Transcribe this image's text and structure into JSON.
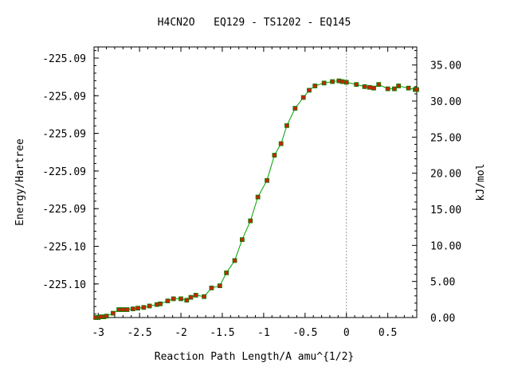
{
  "chart_data": {
    "type": "line",
    "title": "H4CN2O   EQ129 - TS1202 - EQ145",
    "xlabel": "Reaction Path Length/A amu^{1/2}",
    "ylabel": "Energy/Hartree",
    "y2label": "kJ/mol",
    "xlim": [
      -3.05,
      0.85
    ],
    "ylim": [
      0,
      37.5
    ],
    "x_ticks": [
      "-3",
      "-2.5",
      "-2",
      "-1.5",
      "-1",
      "-0.5",
      "0",
      "0.5"
    ],
    "y_ticks_left": [
      "-225.09",
      "-225.09",
      "-225.09",
      "-225.09",
      "-225.09",
      "-225.10",
      "-225.10"
    ],
    "y_ticks_right": [
      "35.00",
      "30.00",
      "25.00",
      "20.00",
      "15.00",
      "10.00",
      "5.00",
      "0.00"
    ],
    "reference_line": {
      "x": 0,
      "style": "dotted"
    },
    "colors": {
      "line": "#00a000",
      "marker": "#cc2200",
      "marker_edge": "#008000",
      "ref_line": "#999999"
    },
    "series": [
      {
        "x": [
          -3.03,
          -3.0,
          -2.97,
          -2.93,
          -2.9,
          -2.82,
          -2.75,
          -2.7,
          -2.65,
          -2.58,
          -2.52,
          -2.45,
          -2.38,
          -2.29,
          -2.25,
          -2.16,
          -2.09,
          -2.0,
          -1.93,
          -1.88,
          -1.82,
          -1.72,
          -1.63,
          -1.53,
          -1.45,
          -1.35,
          -1.26,
          -1.16,
          -1.07,
          -0.96,
          -0.87,
          -0.79,
          -0.72,
          -0.62,
          -0.52,
          -0.45,
          -0.38,
          -0.27,
          -0.17,
          -0.09,
          -0.05,
          0.0,
          0.12,
          0.22,
          0.28,
          0.33,
          0.39,
          0.5,
          0.58,
          0.63,
          0.75,
          0.83,
          0.86
        ],
        "y": [
          0.0,
          0.0,
          0.1,
          0.1,
          0.2,
          0.6,
          1.1,
          1.1,
          1.1,
          1.2,
          1.3,
          1.4,
          1.6,
          1.8,
          1.9,
          2.3,
          2.6,
          2.6,
          2.4,
          2.8,
          3.1,
          2.9,
          4.1,
          4.4,
          6.2,
          7.9,
          10.8,
          13.4,
          16.7,
          19.0,
          22.5,
          24.1,
          26.6,
          29.0,
          30.5,
          31.5,
          32.1,
          32.5,
          32.7,
          32.8,
          32.7,
          32.6,
          32.3,
          32.0,
          31.9,
          31.8,
          32.3,
          31.7,
          31.7,
          32.1,
          31.8,
          31.6,
          31.6
        ]
      }
    ]
  }
}
